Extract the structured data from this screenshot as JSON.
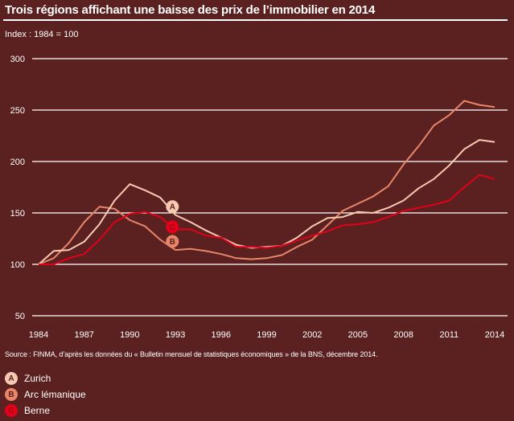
{
  "chart_data": {
    "type": "line",
    "title": "Trois régions affichant une baisse des prix de l’immobilier en 2014",
    "subtitle": "Index : 1984 = 100",
    "xlabel": "",
    "ylabel": "",
    "ylim": [
      50,
      300
    ],
    "xlim": [
      1984,
      2014
    ],
    "yticks": [
      50,
      100,
      150,
      200,
      250,
      300
    ],
    "xticks": [
      1984,
      1987,
      1990,
      1993,
      1996,
      1999,
      2002,
      2005,
      2008,
      2011,
      2014
    ],
    "grid": true,
    "legend_placement": "bottom-left",
    "x": [
      1984,
      1985,
      1986,
      1987,
      1988,
      1989,
      1990,
      1991,
      1992,
      1993,
      1994,
      1995,
      1996,
      1997,
      1998,
      1999,
      2000,
      2001,
      2002,
      2003,
      2004,
      2005,
      2006,
      2007,
      2008,
      2009,
      2010,
      2011,
      2012,
      2013,
      2014
    ],
    "series": [
      {
        "key": "A",
        "name": "Zurich",
        "color": "#f7c9b0",
        "marker_year": 1992.8,
        "values": [
          100,
          113,
          114,
          122,
          139,
          162,
          178,
          172,
          165,
          148,
          141,
          133,
          126,
          119,
          116,
          117,
          118,
          126,
          137,
          145,
          146,
          151,
          150,
          155,
          162,
          174,
          183,
          196,
          212,
          221,
          219
        ]
      },
      {
        "key": "B",
        "name": "Arc lémanique",
        "color": "#e8866a",
        "marker_year": 1992.8,
        "values": [
          100,
          106,
          121,
          141,
          156,
          154,
          143,
          137,
          124,
          114,
          115,
          113,
          110,
          106,
          105,
          106,
          109,
          117,
          124,
          138,
          152,
          159,
          166,
          176,
          197,
          215,
          235,
          245,
          259,
          255,
          253
        ]
      },
      {
        "key": "C",
        "name": "Berne",
        "color": "#e2001a",
        "marker_year": 1992.8,
        "values": [
          100,
          100,
          106,
          110,
          124,
          141,
          149,
          151,
          146,
          134,
          134,
          128,
          126,
          117,
          117,
          116,
          118,
          123,
          128,
          132,
          138,
          139,
          141,
          146,
          152,
          155,
          158,
          162,
          175,
          187,
          183
        ]
      }
    ],
    "source": "Source : FINMA, d’après les données du « Bulletin mensuel de statistiques économiques » de la BNS, décembre 2014."
  },
  "colors": {
    "background": "#5b2120",
    "grid": "#ffffff",
    "text": "#ffffff"
  }
}
